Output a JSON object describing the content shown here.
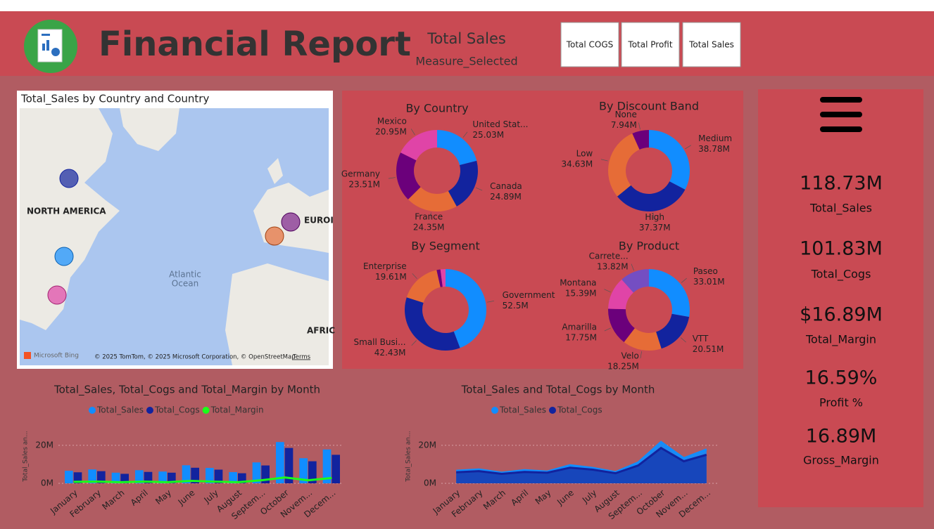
{
  "header": {
    "title": "Financial Report",
    "measure_value": "Total Sales",
    "measure_caption": "Measure_Selected",
    "buttons": [
      "Total COGS",
      "Total Profit",
      "Total Sales"
    ]
  },
  "map": {
    "title": "Total_Sales by Country and Country",
    "region_labels": [
      "NORTH AMERICA",
      "EUROI",
      "AFRIC"
    ],
    "ocean_label": [
      "Atlantic",
      "Ocean"
    ],
    "logo_text": "Microsoft Bing",
    "attribution": "© 2025 TomTom, © 2025 Microsoft Corporation, © OpenStreetMap",
    "terms": "Terms"
  },
  "kpis": [
    {
      "value": "118.73M",
      "label": "Total_Sales"
    },
    {
      "value": "101.83M",
      "label": "Total_Cogs"
    },
    {
      "value": "$16.89M",
      "label": "Total_Margin"
    },
    {
      "value": "16.59%",
      "label": "Profit %"
    },
    {
      "value": "16.89M",
      "label": "Gross_Margin"
    }
  ],
  "chart_data": [
    {
      "type": "donut",
      "title": "By Country",
      "categories": [
        "United Stat...",
        "Canada",
        "France",
        "Germany",
        "Mexico"
      ],
      "values": [
        25.03,
        24.89,
        24.35,
        23.51,
        20.95
      ],
      "value_labels": [
        "25.03M",
        "24.89M",
        "24.35M",
        "23.51M",
        "20.95M"
      ],
      "colors": [
        "#118dff",
        "#12239e",
        "#e66c37",
        "#6b007b",
        "#e044a7"
      ]
    },
    {
      "type": "donut",
      "title": "By Discount Band",
      "categories": [
        "Medium",
        "High",
        "Low",
        "None"
      ],
      "values": [
        38.78,
        37.37,
        34.63,
        7.94
      ],
      "value_labels": [
        "38.78M",
        "37.37M",
        "34.63M",
        "7.94M"
      ],
      "colors": [
        "#118dff",
        "#12239e",
        "#e66c37",
        "#6b007b"
      ]
    },
    {
      "type": "donut",
      "title": "By Segment",
      "categories": [
        "Government",
        "Small Busi...",
        "Enterprise",
        null,
        null
      ],
      "values": [
        52.5,
        42.43,
        19.61,
        1.8,
        2.38
      ],
      "value_labels": [
        "52.5M",
        "42.43M",
        "19.61M",
        null,
        null
      ],
      "colors": [
        "#118dff",
        "#12239e",
        "#e66c37",
        "#6b007b",
        "#e044a7"
      ]
    },
    {
      "type": "donut",
      "title": "By Product",
      "categories": [
        "Paseo",
        "VTT",
        "Velo",
        "Amarilla",
        "Montana",
        "Carrete..."
      ],
      "values": [
        33.01,
        20.51,
        18.25,
        17.75,
        15.39,
        13.82
      ],
      "value_labels": [
        "33.01M",
        "20.51M",
        "18.25M",
        "17.75M",
        "15.39M",
        "13.82M"
      ],
      "colors": [
        "#118dff",
        "#12239e",
        "#e66c37",
        "#6b007b",
        "#e044a7",
        "#744ec2"
      ]
    },
    {
      "type": "bar",
      "title": "Total_Sales, Total_Cogs and Total_Margin by Month",
      "y_label": "Total_Sales an...",
      "categories": [
        "January",
        "February",
        "March",
        "April",
        "May",
        "June",
        "July",
        "August",
        "Septem...",
        "October",
        "Novem...",
        "Decem..."
      ],
      "series": [
        {
          "name": "Total_Sales",
          "color": "#118dff",
          "values": [
            6.6,
            7.3,
            5.6,
            6.9,
            6.2,
            9.5,
            8.1,
            5.9,
            11.0,
            21.7,
            13.2,
            17.8
          ]
        },
        {
          "name": "Total_Cogs",
          "color": "#12239e",
          "values": [
            5.8,
            6.4,
            5.0,
            6.0,
            5.6,
            8.2,
            7.2,
            5.3,
            9.4,
            18.6,
            11.6,
            15.0
          ]
        },
        {
          "name": "Total_Margin",
          "color": "#1aff1a",
          "type": "line",
          "values": [
            0.8,
            0.9,
            0.6,
            0.9,
            0.6,
            1.3,
            0.9,
            0.6,
            1.6,
            3.1,
            1.6,
            2.8
          ]
        }
      ],
      "ylim": [
        0,
        24
      ],
      "yticks": [
        {
          "value": 0,
          "label": "0M"
        },
        {
          "value": 20,
          "label": "20M"
        }
      ],
      "grid": true
    },
    {
      "type": "area",
      "title": "Total_Sales and Total_Cogs by Month",
      "y_label": "Total_Sales an...",
      "categories": [
        "January",
        "February",
        "March",
        "April",
        "May",
        "June",
        "July",
        "August",
        "Septem...",
        "October",
        "Novem...",
        "Decem..."
      ],
      "series": [
        {
          "name": "Total_Sales",
          "color": "#118dff",
          "values": [
            6.6,
            7.3,
            5.6,
            6.9,
            6.2,
            9.5,
            8.1,
            5.9,
            11.0,
            21.7,
            13.2,
            17.8
          ]
        },
        {
          "name": "Total_Cogs",
          "color": "#12239e",
          "values": [
            5.8,
            6.4,
            5.0,
            6.0,
            5.6,
            8.2,
            7.2,
            5.3,
            9.4,
            18.6,
            11.6,
            15.0
          ]
        }
      ],
      "ylim": [
        0,
        24
      ],
      "yticks": [
        {
          "value": 0,
          "label": "0M"
        },
        {
          "value": 20,
          "label": "20M"
        }
      ],
      "grid": true
    }
  ]
}
